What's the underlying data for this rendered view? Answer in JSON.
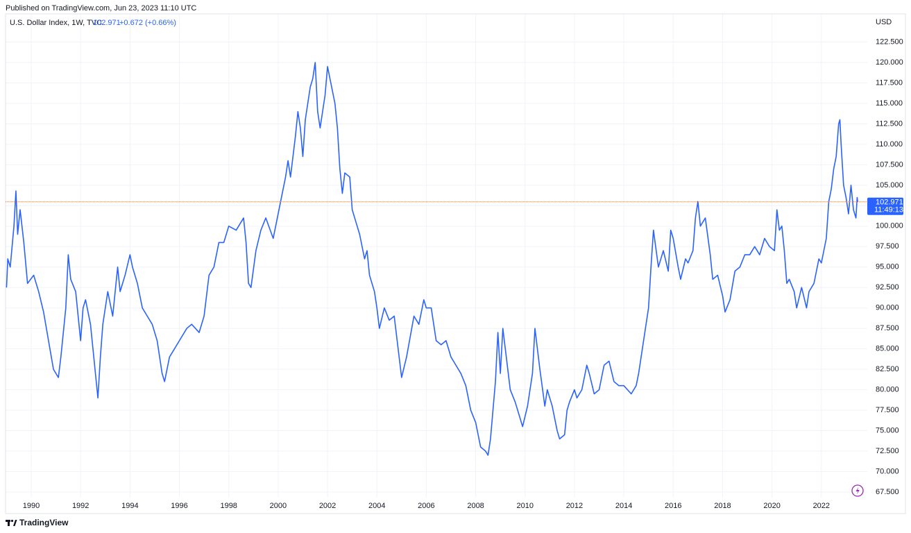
{
  "header": {
    "published": "Published on TradingView.com, Jun 23, 2023 11:10 UTC",
    "change": "+0.672 (+0.66%)",
    "time": "11:49:13"
  },
  "footer": {
    "brand": "TradingView"
  },
  "chart_data": {
    "type": "line",
    "currency": "USD",
    "last_price": 102.971,
    "last_price_line_color": "#ff6d00",
    "grid": true,
    "xlim": [
      1988.96,
      2023.86
    ],
    "xticks": [
      1990,
      1992,
      1994,
      1996,
      1998,
      2000,
      2002,
      2004,
      2006,
      2008,
      2010,
      2012,
      2014,
      2016,
      2018,
      2020,
      2022
    ],
    "ylim": [
      66.82,
      125.94
    ],
    "yticks": [
      {
        "value": 67.5,
        "label": "67.500"
      },
      {
        "value": 70,
        "label": "70.000"
      },
      {
        "value": 72.5,
        "label": "72.500"
      },
      {
        "value": 75,
        "label": "75.000"
      },
      {
        "value": 77.5,
        "label": "77.500"
      },
      {
        "value": 80,
        "label": "80.000"
      },
      {
        "value": 82.5,
        "label": "82.500"
      },
      {
        "value": 85,
        "label": "85.000"
      },
      {
        "value": 87.5,
        "label": "87.500"
      },
      {
        "value": 90,
        "label": "90.000"
      },
      {
        "value": 92.5,
        "label": "92.500"
      },
      {
        "value": 95,
        "label": "95.000"
      },
      {
        "value": 97.5,
        "label": "97.500"
      },
      {
        "value": 100,
        "label": "100.000"
      },
      {
        "value": 102.5,
        "label": "102.500"
      },
      {
        "value": 105,
        "label": "105.000"
      },
      {
        "value": 107.5,
        "label": "107.500"
      },
      {
        "value": 110,
        "label": "110.000"
      },
      {
        "value": 112.5,
        "label": "112.500"
      },
      {
        "value": 115,
        "label": "115.000"
      },
      {
        "value": 117.5,
        "label": "117.500"
      },
      {
        "value": 120,
        "label": "120.000"
      },
      {
        "value": 122.5,
        "label": "122.500"
      }
    ],
    "x": [
      1989.0,
      1989.05,
      1989.15,
      1989.3,
      1989.38,
      1989.45,
      1989.55,
      1989.7,
      1989.85,
      1990.1,
      1990.3,
      1990.5,
      1990.7,
      1990.9,
      1991.1,
      1991.2,
      1991.4,
      1991.5,
      1991.6,
      1991.8,
      1992.0,
      1992.1,
      1992.2,
      1992.4,
      1992.6,
      1992.7,
      1992.8,
      1992.9,
      1993.1,
      1993.3,
      1993.5,
      1993.6,
      1993.8,
      1994.0,
      1994.1,
      1994.3,
      1994.5,
      1994.7,
      1994.9,
      1995.1,
      1995.3,
      1995.4,
      1995.6,
      1995.8,
      1996.0,
      1996.3,
      1996.5,
      1996.8,
      1997.0,
      1997.2,
      1997.4,
      1997.6,
      1997.8,
      1998.0,
      1998.3,
      1998.6,
      1998.7,
      1998.8,
      1998.9,
      1999.1,
      1999.3,
      1999.5,
      1999.8,
      1999.9,
      2000.1,
      2000.3,
      2000.4,
      2000.5,
      2000.7,
      2000.8,
      2000.9,
      2001.0,
      2001.1,
      2001.3,
      2001.4,
      2001.5,
      2001.6,
      2001.7,
      2001.9,
      2002.0,
      2002.1,
      2002.3,
      2002.4,
      2002.5,
      2002.6,
      2002.7,
      2002.9,
      2003.0,
      2003.2,
      2003.3,
      2003.5,
      2003.6,
      2003.7,
      2003.9,
      2004.0,
      2004.1,
      2004.3,
      2004.5,
      2004.7,
      2004.9,
      2005.0,
      2005.2,
      2005.5,
      2005.7,
      2005.9,
      2006.0,
      2006.2,
      2006.4,
      2006.6,
      2006.8,
      2007.0,
      2007.2,
      2007.4,
      2007.6,
      2007.8,
      2008.0,
      2008.2,
      2008.4,
      2008.5,
      2008.6,
      2008.8,
      2008.9,
      2009.0,
      2009.1,
      2009.2,
      2009.4,
      2009.6,
      2009.8,
      2009.9,
      2010.1,
      2010.3,
      2010.4,
      2010.5,
      2010.6,
      2010.8,
      2010.9,
      2011.1,
      2011.3,
      2011.4,
      2011.6,
      2011.7,
      2011.8,
      2012.0,
      2012.1,
      2012.3,
      2012.5,
      2012.6,
      2012.8,
      2013.0,
      2013.2,
      2013.4,
      2013.6,
      2013.8,
      2014.0,
      2014.3,
      2014.5,
      2014.6,
      2014.8,
      2015.0,
      2015.1,
      2015.2,
      2015.4,
      2015.6,
      2015.8,
      2015.9,
      2016.0,
      2016.2,
      2016.3,
      2016.5,
      2016.6,
      2016.8,
      2016.9,
      2017.0,
      2017.1,
      2017.3,
      2017.5,
      2017.6,
      2017.8,
      2018.0,
      2018.1,
      2018.3,
      2018.5,
      2018.7,
      2018.9,
      2019.1,
      2019.3,
      2019.5,
      2019.7,
      2019.9,
      2020.1,
      2020.2,
      2020.3,
      2020.4,
      2020.5,
      2020.6,
      2020.7,
      2020.9,
      2021.0,
      2021.2,
      2021.4,
      2021.5,
      2021.7,
      2021.9,
      2022.0,
      2022.2,
      2022.3,
      2022.4,
      2022.5,
      2022.6,
      2022.7,
      2022.75,
      2022.8,
      2022.9,
      2023.0,
      2023.1,
      2023.2,
      2023.3,
      2023.4,
      2023.45,
      2023.47
    ],
    "series": [
      {
        "name": "U.S. Dollar Index, 1W, TVC",
        "color": "#2962ff",
        "values": [
          92.5,
          96,
          95,
          100,
          104.3,
          99,
          102,
          98,
          93,
          94,
          92,
          89.5,
          86,
          82.5,
          81.5,
          84,
          90,
          96.5,
          93.5,
          92,
          86,
          90,
          91,
          88,
          82,
          79,
          84,
          88,
          92,
          89,
          95,
          92,
          94,
          96.5,
          95,
          93,
          90,
          89,
          88,
          86,
          82,
          81,
          84,
          85,
          86,
          87.5,
          88,
          87,
          89,
          94,
          95,
          98,
          98,
          100,
          99.5,
          101,
          98,
          93,
          92.5,
          97,
          99.5,
          101,
          98.5,
          100,
          103,
          106,
          108,
          106,
          111,
          114,
          112,
          108.5,
          113,
          117,
          118,
          120,
          114,
          112,
          116,
          119.5,
          118,
          115,
          112,
          107,
          104,
          106.5,
          106,
          102,
          100,
          99,
          96,
          97,
          94,
          92,
          90,
          87.5,
          90,
          88.5,
          89,
          84,
          81.5,
          84,
          89,
          88,
          91,
          90,
          90,
          86,
          85.5,
          86,
          84,
          83,
          82,
          80.5,
          77.5,
          76,
          73,
          72.5,
          72,
          74,
          81,
          87,
          82,
          87.5,
          85,
          80,
          78.5,
          76.5,
          75.5,
          78,
          82,
          87.5,
          85,
          82.5,
          78,
          80,
          78,
          75,
          74,
          74.5,
          77.5,
          78.5,
          80,
          79,
          80,
          83,
          82,
          79.5,
          80,
          83,
          83.5,
          81,
          80.5,
          80.5,
          79.5,
          80.5,
          82,
          86,
          90,
          95,
          99.5,
          95,
          97,
          94.5,
          99.5,
          98.5,
          95,
          93.5,
          96,
          95.5,
          97,
          101,
          103,
          100,
          101,
          96.5,
          93.5,
          94,
          91.5,
          89.5,
          91,
          94.5,
          95,
          96.5,
          96.5,
          97.5,
          96.5,
          98.5,
          97.5,
          97,
          102,
          99.5,
          100,
          97,
          93,
          93.5,
          92,
          90,
          92.5,
          90,
          92,
          93,
          96,
          95.5,
          98.5,
          103,
          104.5,
          107,
          108.5,
          112.5,
          113,
          110,
          105,
          103.5,
          101.5,
          105,
          102,
          101,
          103.5,
          102.971
        ]
      }
    ]
  }
}
